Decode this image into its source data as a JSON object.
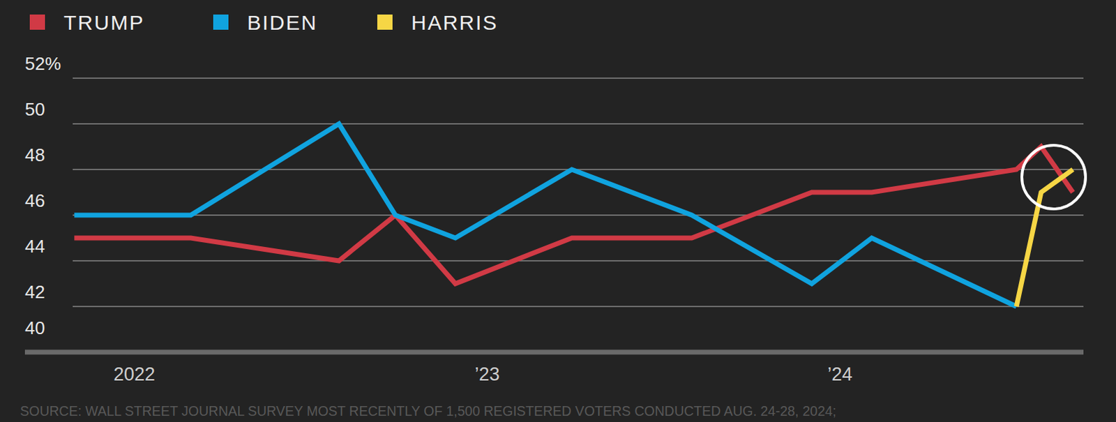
{
  "chart_data": {
    "type": "line",
    "source": "SOURCE: WALL STREET JOURNAL SURVEY MOST RECENTLY OF 1,500 REGISTERED VOTERS CONDUCTED AUG. 24-28, 2024;",
    "x": [
      2021.83,
      2022.16,
      2022.58,
      2022.74,
      2022.91,
      2023.24,
      2023.58,
      2023.92,
      2024.09,
      2024.5,
      2024.57,
      2024.66
    ],
    "series": [
      {
        "name": "TRUMP",
        "color": "#d13a45",
        "values": [
          45,
          45,
          44,
          46,
          43,
          45,
          45,
          47,
          47,
          48,
          49,
          47
        ]
      },
      {
        "name": "BIDEN",
        "color": "#10a3df",
        "values": [
          46,
          46,
          50,
          46,
          45,
          48,
          46,
          43,
          45,
          42,
          null,
          null
        ]
      },
      {
        "name": "HARRIS",
        "color": "#f6d645",
        "values": [
          null,
          null,
          null,
          null,
          null,
          null,
          null,
          null,
          null,
          42,
          47,
          48
        ]
      }
    ],
    "xlim": [
      2021.69,
      2024.69
    ],
    "xticks": [
      {
        "value": 2022,
        "label": "2022"
      },
      {
        "value": 2023,
        "label": "’23"
      },
      {
        "value": 2024,
        "label": "’24"
      }
    ],
    "ylim": [
      40,
      52
    ],
    "yticks": [
      40,
      42,
      44,
      46,
      48,
      50,
      {
        "value": 52,
        "label": "52%"
      }
    ],
    "grid": true,
    "legend": "top"
  }
}
